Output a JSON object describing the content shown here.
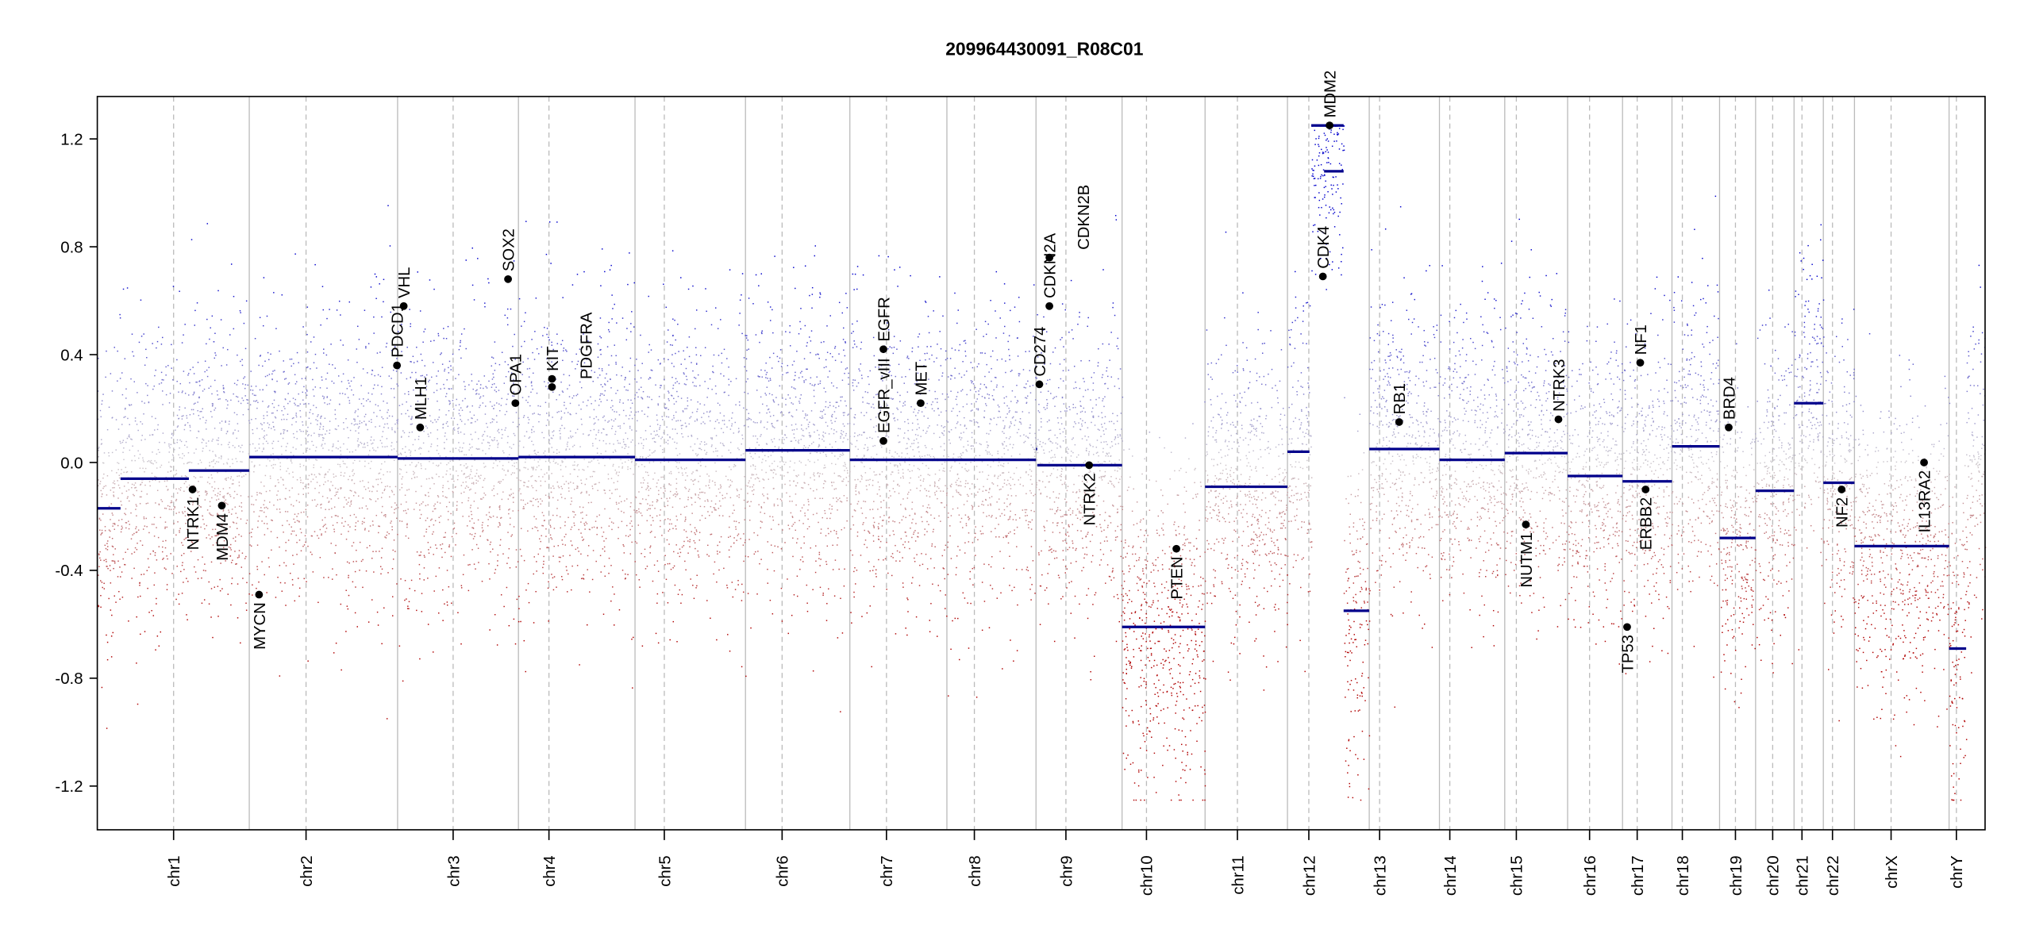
{
  "chart_data": {
    "type": "scatter",
    "title": "209964430091_R08C01",
    "xlabel": "",
    "ylabel": "",
    "ylim": [
      -1.35,
      1.35
    ],
    "yticks": [
      1.2,
      0.8,
      0.4,
      0.0,
      -0.4,
      -0.8,
      -1.2
    ],
    "ytick_labels": [
      "1.2",
      "0.8",
      "0.4",
      "0.0",
      "-0.4",
      "-0.8",
      "-1.2"
    ],
    "grid": false,
    "colors": {
      "gain": "#0000cc",
      "loss": "#b00000",
      "neutral": "#c8c0c8",
      "segment": "#00008b",
      "gene": "#000000",
      "separator": "#bbbbbb"
    },
    "chromosomes": [
      {
        "name": "chr1",
        "length": 249,
        "centromere": 125
      },
      {
        "name": "chr2",
        "length": 243,
        "centromere": 93
      },
      {
        "name": "chr3",
        "length": 198,
        "centromere": 91
      },
      {
        "name": "chr4",
        "length": 191,
        "centromere": 50
      },
      {
        "name": "chr5",
        "length": 181,
        "centromere": 48
      },
      {
        "name": "chr6",
        "length": 171,
        "centromere": 60
      },
      {
        "name": "chr7",
        "length": 159,
        "centromere": 60
      },
      {
        "name": "chr8",
        "length": 146,
        "centromere": 45
      },
      {
        "name": "chr9",
        "length": 141,
        "centromere": 49
      },
      {
        "name": "chr10",
        "length": 136,
        "centromere": 40
      },
      {
        "name": "chr11",
        "length": 135,
        "centromere": 53
      },
      {
        "name": "chr12",
        "length": 134,
        "centromere": 35
      },
      {
        "name": "chr13",
        "length": 115,
        "centromere": 17
      },
      {
        "name": "chr14",
        "length": 107,
        "centromere": 17
      },
      {
        "name": "chr15",
        "length": 103,
        "centromere": 19
      },
      {
        "name": "chr16",
        "length": 90,
        "centromere": 36
      },
      {
        "name": "chr17",
        "length": 81,
        "centromere": 24
      },
      {
        "name": "chr18",
        "length": 78,
        "centromere": 17
      },
      {
        "name": "chr19",
        "length": 59,
        "centromere": 26
      },
      {
        "name": "chr20",
        "length": 63,
        "centromere": 28
      },
      {
        "name": "chr21",
        "length": 48,
        "centromere": 13
      },
      {
        "name": "chr22",
        "length": 51,
        "centromere": 15
      },
      {
        "name": "chrX",
        "length": 155,
        "centromere": 60
      },
      {
        "name": "chrY",
        "length": 59,
        "centromere": 12
      }
    ],
    "segments": [
      {
        "chr": "chr1",
        "start": 0,
        "end": 38,
        "value": -0.17
      },
      {
        "chr": "chr1",
        "start": 38,
        "end": 150,
        "value": -0.06
      },
      {
        "chr": "chr1",
        "start": 150,
        "end": 249,
        "value": -0.03
      },
      {
        "chr": "chr2",
        "start": 0,
        "end": 243,
        "value": 0.02
      },
      {
        "chr": "chr3",
        "start": 0,
        "end": 198,
        "value": 0.015
      },
      {
        "chr": "chr4",
        "start": 0,
        "end": 191,
        "value": 0.02
      },
      {
        "chr": "chr5",
        "start": 0,
        "end": 181,
        "value": 0.01
      },
      {
        "chr": "chr6",
        "start": 0,
        "end": 171,
        "value": 0.045
      },
      {
        "chr": "chr7",
        "start": 0,
        "end": 159,
        "value": 0.01
      },
      {
        "chr": "chr8",
        "start": 0,
        "end": 146,
        "value": 0.01
      },
      {
        "chr": "chr9",
        "start": 0,
        "end": 2,
        "value": 0.05
      },
      {
        "chr": "chr9",
        "start": 2,
        "end": 141,
        "value": -0.01
      },
      {
        "chr": "chr10",
        "start": 0,
        "end": 136,
        "value": -0.61
      },
      {
        "chr": "chr11",
        "start": 0,
        "end": 135,
        "value": -0.09
      },
      {
        "chr": "chr12",
        "start": 0,
        "end": 36,
        "value": 0.04
      },
      {
        "chr": "chr12",
        "start": 39,
        "end": 92,
        "value": 1.25
      },
      {
        "chr": "chr12",
        "start": 60,
        "end": 92,
        "value": 1.08
      },
      {
        "chr": "chr12",
        "start": 92,
        "end": 134,
        "value": -0.55
      },
      {
        "chr": "chr13",
        "start": 0,
        "end": 115,
        "value": 0.05
      },
      {
        "chr": "chr14",
        "start": 0,
        "end": 107,
        "value": 0.01
      },
      {
        "chr": "chr15",
        "start": 0,
        "end": 103,
        "value": 0.035
      },
      {
        "chr": "chr16",
        "start": 0,
        "end": 90,
        "value": -0.05
      },
      {
        "chr": "chr17",
        "start": 0,
        "end": 81,
        "value": -0.07
      },
      {
        "chr": "chr18",
        "start": 0,
        "end": 78,
        "value": 0.06
      },
      {
        "chr": "chr19",
        "start": 0,
        "end": 59,
        "value": -0.28
      },
      {
        "chr": "chr20",
        "start": 0,
        "end": 63,
        "value": -0.105
      },
      {
        "chr": "chr21",
        "start": 0,
        "end": 48,
        "value": 0.22
      },
      {
        "chr": "chr22",
        "start": 0,
        "end": 51,
        "value": -0.075
      },
      {
        "chr": "chrX",
        "start": 0,
        "end": 155,
        "value": -0.31
      },
      {
        "chr": "chrY",
        "start": 0,
        "end": 28,
        "value": -0.69
      }
    ],
    "genes": [
      {
        "name": "NTRK1",
        "chr": "chr1",
        "pos": 156,
        "value": -0.1
      },
      {
        "name": "MDM4",
        "chr": "chr1",
        "pos": 204,
        "value": -0.16
      },
      {
        "name": "MYCN",
        "chr": "chr2",
        "pos": 16,
        "value": -0.49
      },
      {
        "name": "PDCD1",
        "chr": "chr2",
        "pos": 242,
        "value": 0.36
      },
      {
        "name": "VHL",
        "chr": "chr3",
        "pos": 10,
        "value": 0.58
      },
      {
        "name": "MLH1",
        "chr": "chr3",
        "pos": 37,
        "value": 0.13
      },
      {
        "name": "SOX2",
        "chr": "chr3",
        "pos": 181,
        "value": 0.68
      },
      {
        "name": "OPA1",
        "chr": "chr3",
        "pos": 193,
        "value": 0.22
      },
      {
        "name": "KIT",
        "chr": "chr4",
        "pos": 55,
        "value": 0.31
      },
      {
        "name": "PDGFRA",
        "chr": "chr4",
        "pos": 55,
        "value": 0.28
      },
      {
        "name": "EGFR_vIII",
        "chr": "chr7",
        "pos": 55,
        "value": 0.08
      },
      {
        "name": "EGFR",
        "chr": "chr7",
        "pos": 55,
        "value": 0.42
      },
      {
        "name": "MET",
        "chr": "chr7",
        "pos": 116,
        "value": 0.22
      },
      {
        "name": "CD274",
        "chr": "chr9",
        "pos": 5.5,
        "value": 0.29
      },
      {
        "name": "CDKN2A",
        "chr": "chr9",
        "pos": 21.9,
        "value": 0.58
      },
      {
        "name": "CDKN2B",
        "chr": "chr9",
        "pos": 22,
        "value": 0.76
      },
      {
        "name": "NTRK2",
        "chr": "chr9",
        "pos": 87,
        "value": -0.01
      },
      {
        "name": "PTEN",
        "chr": "chr10",
        "pos": 89,
        "value": -0.32
      },
      {
        "name": "CDK4",
        "chr": "chr12",
        "pos": 58,
        "value": 0.69
      },
      {
        "name": "MDM2",
        "chr": "chr12",
        "pos": 69,
        "value": 1.25
      },
      {
        "name": "RB1",
        "chr": "chr13",
        "pos": 49,
        "value": 0.15
      },
      {
        "name": "NUTM1",
        "chr": "chr15",
        "pos": 34.6,
        "value": -0.23
      },
      {
        "name": "NTRK3",
        "chr": "chr15",
        "pos": 88,
        "value": 0.16
      },
      {
        "name": "TP53",
        "chr": "chr17",
        "pos": 7.5,
        "value": -0.61
      },
      {
        "name": "NF1",
        "chr": "chr17",
        "pos": 29,
        "value": 0.37
      },
      {
        "name": "ERBB2",
        "chr": "chr17",
        "pos": 37.8,
        "value": -0.1
      },
      {
        "name": "BRD4",
        "chr": "chr19",
        "pos": 15,
        "value": 0.13
      },
      {
        "name": "NF2",
        "chr": "chr22",
        "pos": 30,
        "value": -0.1
      },
      {
        "name": "IL13RA2",
        "chr": "chrX",
        "pos": 114,
        "value": 0.0
      }
    ]
  }
}
